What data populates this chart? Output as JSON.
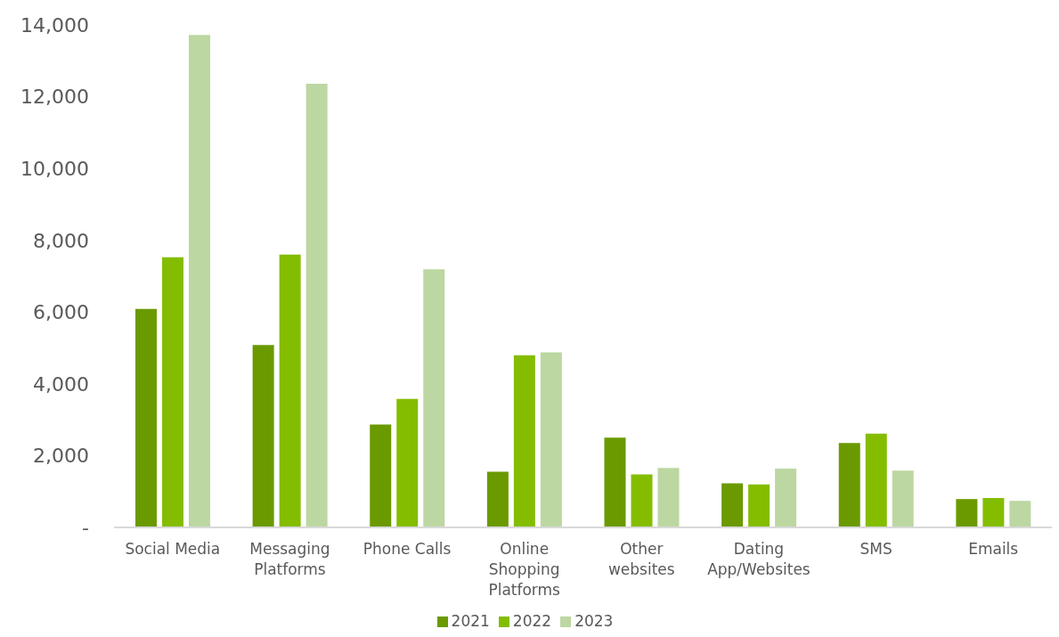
{
  "chart_data": {
    "type": "bar",
    "categories": [
      "Social Media",
      "Messaging Platforms",
      "Phone Calls",
      "Online Shopping Platforms",
      "Other websites",
      "Dating App/Websites",
      "SMS",
      "Emails"
    ],
    "series": [
      {
        "name": "2021",
        "color": "#6a9a00",
        "values": [
          6090,
          5080,
          2870,
          1550,
          2500,
          1230,
          2350,
          790
        ]
      },
      {
        "name": "2022",
        "color": "#84bd00",
        "values": [
          7530,
          7600,
          3580,
          4800,
          1480,
          1200,
          2610,
          820
        ]
      },
      {
        "name": "2023",
        "color": "#bcd7a1",
        "values": [
          13720,
          12360,
          7190,
          4880,
          1660,
          1640,
          1580,
          740
        ]
      }
    ],
    "ylim": [
      0,
      14000
    ],
    "yticks": [
      {
        "value": 0,
        "label": "-"
      },
      {
        "value": 2000,
        "label": "2,000"
      },
      {
        "value": 4000,
        "label": "4,000"
      },
      {
        "value": 6000,
        "label": "6,000"
      },
      {
        "value": 8000,
        "label": "8,000"
      },
      {
        "value": 10000,
        "label": "10,000"
      },
      {
        "value": 12000,
        "label": "12,000"
      },
      {
        "value": 14000,
        "label": "14,000"
      }
    ],
    "grid": false,
    "legend": "bottom"
  }
}
